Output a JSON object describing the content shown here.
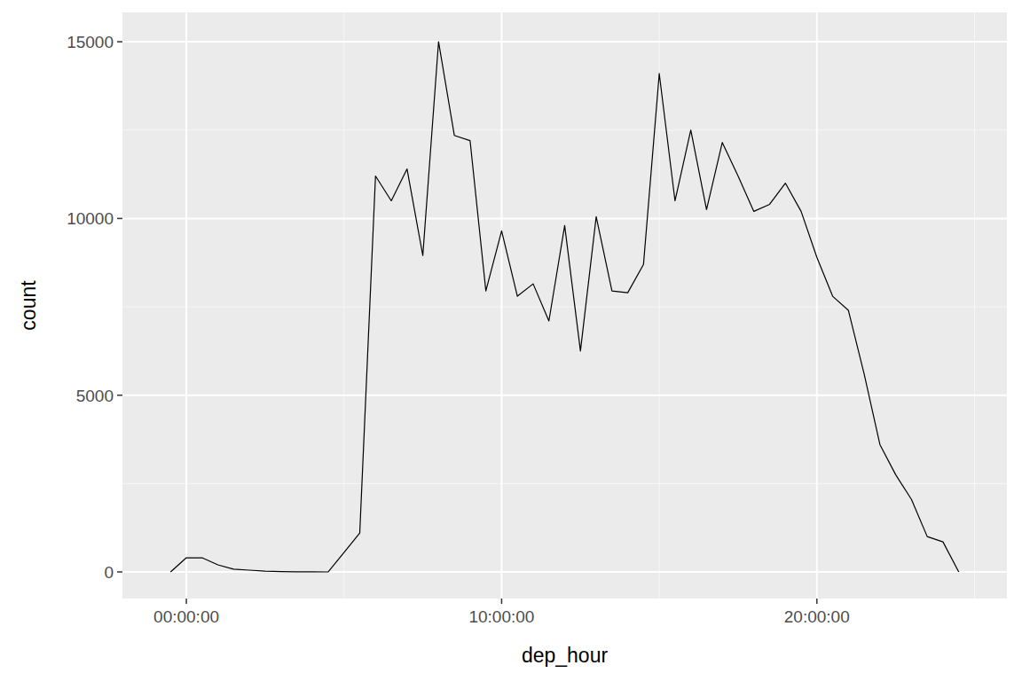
{
  "chart_data": {
    "type": "line",
    "x_label": "dep_hour",
    "y_label": "count",
    "x": [
      -1800,
      0,
      1800,
      3600,
      5400,
      7200,
      9000,
      10800,
      12600,
      14400,
      16200,
      18000,
      19800,
      21600,
      23400,
      25200,
      27000,
      28800,
      30600,
      32400,
      34200,
      36000,
      37800,
      39600,
      41400,
      43200,
      45000,
      46800,
      48600,
      50400,
      52200,
      54000,
      55800,
      57600,
      59400,
      61200,
      63000,
      64800,
      66600,
      68400,
      70200,
      72000,
      73800,
      75600,
      77400,
      79200,
      81000,
      82800,
      84600,
      86400,
      88200
    ],
    "values": [
      0,
      400,
      400,
      200,
      80,
      50,
      20,
      10,
      5,
      5,
      0,
      550,
      1100,
      11200,
      10500,
      11400,
      8950,
      15000,
      12350,
      12200,
      7950,
      9650,
      7800,
      8150,
      7100,
      9800,
      6250,
      10050,
      7950,
      7900,
      8700,
      14100,
      10500,
      12500,
      10250,
      12150,
      11200,
      10200,
      10400,
      11000,
      10200,
      8900,
      7800,
      7400,
      5600,
      3600,
      2750,
      2050,
      1000,
      850,
      0
    ],
    "color": "#000000",
    "xlim": [
      -7300,
      93700
    ],
    "ylim": [
      -753,
      15830
    ],
    "xticks": [
      {
        "value": 0,
        "label": "00:00:00"
      },
      {
        "value": 36000,
        "label": "10:00:00"
      },
      {
        "value": 72000,
        "label": "20:00:00"
      }
    ],
    "yticks": [
      0,
      5000,
      10000,
      15000
    ],
    "grid": true
  }
}
